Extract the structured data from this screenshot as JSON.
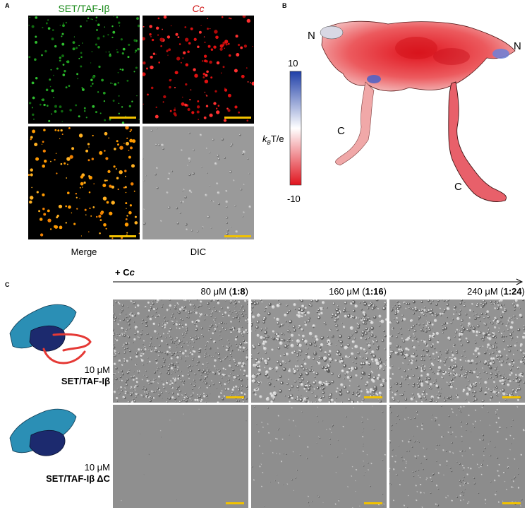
{
  "panel_a": {
    "label": "A",
    "title_green": "SET/TAF-Iβ",
    "title_red": "Cc",
    "caption_merge": "Merge",
    "caption_dic": "DIC"
  },
  "panel_b": {
    "label": "B",
    "scale_max": "10",
    "scale_min": "-10",
    "scale_unit": "kBT/e",
    "terminus_n_left": "N",
    "terminus_n_right": "N",
    "terminus_c_left": "C",
    "terminus_c_right": "C",
    "colors": {
      "positive": "#1f3fa8",
      "neutral": "#ffffff",
      "negative": "#e0141e"
    }
  },
  "panel_c": {
    "label": "C",
    "header": "+ Cc",
    "concentrations": [
      {
        "value": "80 μM (",
        "ratio": "1:8",
        "close": ")"
      },
      {
        "value": "160 μM (",
        "ratio": "1:16",
        "close": ")"
      },
      {
        "value": "240 μM (",
        "ratio": "1:24",
        "close": ")"
      }
    ],
    "rows": [
      {
        "conc": "10 μM",
        "name": "SET/TAF-Iβ"
      },
      {
        "conc": "10 μM",
        "name": "SET/TAF-Iβ ΔC"
      }
    ]
  }
}
